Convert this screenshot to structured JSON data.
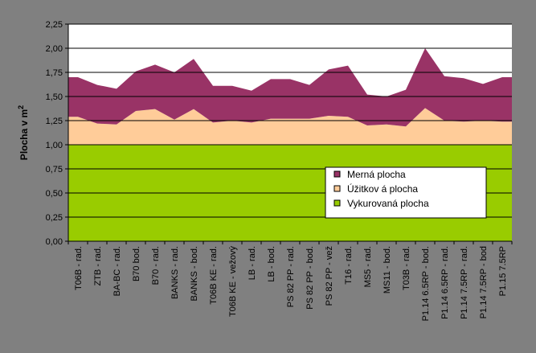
{
  "chart_data": {
    "type": "area",
    "stacked": true,
    "title": "",
    "xlabel": "",
    "ylabel": "Plocha v m",
    "ylabel_superscript": "2",
    "ylim": [
      0,
      2.25
    ],
    "yticks": [
      "0,00",
      "0,25",
      "0,50",
      "0,75",
      "1,00",
      "1,25",
      "1,50",
      "1,75",
      "2,00",
      "2,25"
    ],
    "grid": "horizontal major",
    "legend_position": "bottom-right inside",
    "categories": [
      "T06B - rad.",
      "ZTB - rad.",
      "BA-BC - rad.",
      "B70 bod.",
      "B70 - rad.",
      "BANKS - rad.",
      "BANKS - bod.",
      "T06B KE - rad.",
      "T06B KE - vežový",
      "LB - rad.",
      "LB - bod.",
      "PS 82 PP - rad.",
      "PS 82 PP - bod.",
      "PS 82 PP - vež",
      "T16 - rad.",
      "MS5 - rad.",
      "MS11 - bod.",
      "T03B - rad.",
      "P1.14 6.5RP - bod.",
      "P1.14 6.5RP - rad.",
      "P1.14 7.5RP - rad.",
      "P1.14 7.5RP - bod",
      "P1.15 7.5RP"
    ],
    "series": [
      {
        "name": "Vykurovaná plocha",
        "color": "#99CC00",
        "values": [
          1.0,
          1.0,
          1.0,
          1.0,
          1.0,
          1.0,
          1.0,
          1.0,
          1.0,
          1.0,
          1.0,
          1.0,
          1.0,
          1.0,
          1.0,
          1.0,
          1.0,
          1.0,
          1.0,
          1.0,
          1.0,
          1.0,
          1.0
        ]
      },
      {
        "name": "Úžitkov á plocha",
        "color": "#FFCC99",
        "values": [
          0.29,
          0.22,
          0.21,
          0.35,
          0.37,
          0.26,
          0.37,
          0.23,
          0.25,
          0.23,
          0.27,
          0.27,
          0.27,
          0.3,
          0.29,
          0.2,
          0.21,
          0.19,
          0.38,
          0.25,
          0.24,
          0.25,
          0.24
        ]
      },
      {
        "name": "Merná plocha",
        "color": "#993366",
        "values": [
          0.41,
          0.4,
          0.37,
          0.41,
          0.46,
          0.49,
          0.52,
          0.38,
          0.36,
          0.33,
          0.41,
          0.41,
          0.35,
          0.48,
          0.53,
          0.32,
          0.29,
          0.38,
          0.62,
          0.46,
          0.45,
          0.38,
          0.46
        ]
      }
    ],
    "legend_order": [
      "Merná plocha",
      "Úžitkov á plocha",
      "Vykurovaná plocha"
    ]
  }
}
